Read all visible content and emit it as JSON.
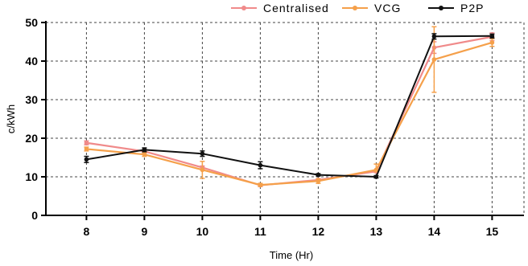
{
  "chart_data": {
    "type": "line",
    "xlabel": "Time (Hr)",
    "ylabel": "c/kWh",
    "x": [
      8,
      9,
      10,
      11,
      12,
      13,
      14,
      15
    ],
    "xlim": [
      7.3,
      15.55
    ],
    "ylim": [
      0,
      50
    ],
    "yticks": [
      0,
      10,
      20,
      30,
      40,
      50
    ],
    "grid": true,
    "legend_position": "top-right",
    "series": [
      {
        "name": "Centralised",
        "color": "#f08a8a",
        "values": [
          18.8,
          16.6,
          12.4,
          7.8,
          9.2,
          11.4,
          43.5,
          46.3
        ],
        "err_low": [
          0.5,
          0.4,
          0.4,
          0.3,
          0.3,
          0.3,
          1.5,
          1.0
        ],
        "err_high": [
          0.5,
          0.4,
          0.4,
          0.3,
          0.3,
          0.3,
          1.5,
          1.0
        ]
      },
      {
        "name": "VCG",
        "color": "#f5a04a",
        "values": [
          17.2,
          15.8,
          11.8,
          7.9,
          8.9,
          11.8,
          40.4,
          44.8
        ],
        "err_low": [
          0.5,
          0.5,
          2.2,
          0.4,
          0.6,
          0.5,
          8.5,
          1.0
        ],
        "err_high": [
          0.5,
          0.5,
          2.2,
          0.4,
          0.6,
          1.5,
          8.5,
          1.0
        ]
      },
      {
        "name": "P2P",
        "color": "#111111",
        "values": [
          14.5,
          17.0,
          16.0,
          13.0,
          10.5,
          10.0,
          46.4,
          46.5
        ],
        "err_low": [
          0.8,
          0.5,
          0.7,
          0.9,
          0.3,
          0.3,
          0.7,
          0.5
        ],
        "err_high": [
          0.8,
          0.5,
          0.7,
          0.9,
          0.3,
          0.3,
          0.7,
          0.5
        ]
      }
    ]
  }
}
